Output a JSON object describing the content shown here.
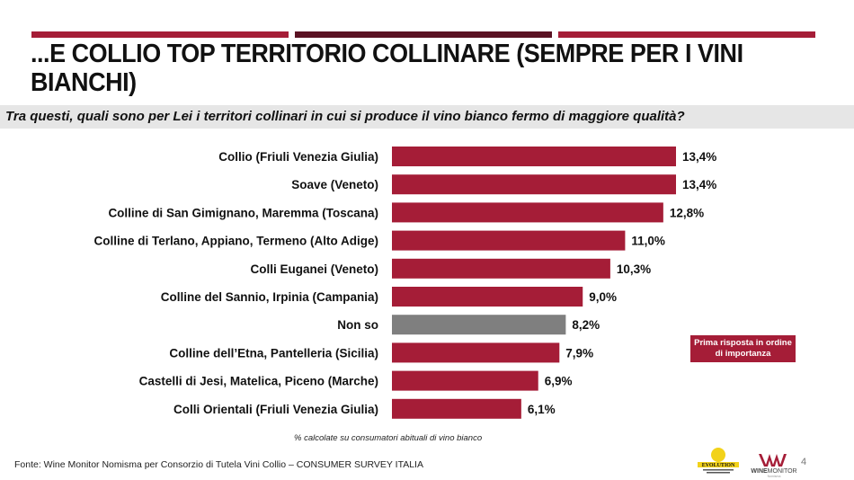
{
  "title": "...E COLLIO TOP TERRITORIO COLLINARE (SEMPRE PER I VINI BIANCHI)",
  "question": "Tra questi, quali sono per Lei i territori collinari in cui si produce il vino bianco fermo di maggiore qualità?",
  "note": "Prima risposta in ordine di importanza",
  "footnote": "% calcolate su consumatori abituali di vino bianco",
  "source": "Fonte: Wine Monitor Nomisma per Consorzio di Tutela Vini Collio – CONSUMER SURVEY ITALIA",
  "page_number": "4",
  "logos": [
    "EVOLUTION",
    "WINEMONITOR Nomisma"
  ],
  "colors": {
    "bar": "#a51d37",
    "bar_highlight": "#7f7f7f",
    "stripe_light": "#a51d37",
    "stripe_dark": "#5a1223"
  },
  "chart_data": {
    "type": "bar",
    "orientation": "horizontal",
    "categories": [
      "Collio (Friuli Venezia Giulia)",
      "Soave (Veneto)",
      "Colline di San Gimignano, Maremma (Toscana)",
      "Colline di Terlano, Appiano, Termeno (Alto Adige)",
      "Colli Euganei (Veneto)",
      "Colline del Sannio, Irpinia (Campania)",
      "Non so",
      "Colline dell’Etna, Pantelleria (Sicilia)",
      "Castelli di Jesi, Matelica, Piceno (Marche)",
      "Colli Orientali (Friuli Venezia Giulia)"
    ],
    "values": [
      13.4,
      13.4,
      12.8,
      11.0,
      10.3,
      9.0,
      8.2,
      7.9,
      6.9,
      6.1
    ],
    "value_labels": [
      "13,4%",
      "13,4%",
      "12,8%",
      "11,0%",
      "10,3%",
      "9,0%",
      "8,2%",
      "7,9%",
      "6,9%",
      "6,1%"
    ],
    "highlight": [
      "Non so"
    ],
    "unit": "%",
    "grid": false,
    "axis_visible": false
  }
}
